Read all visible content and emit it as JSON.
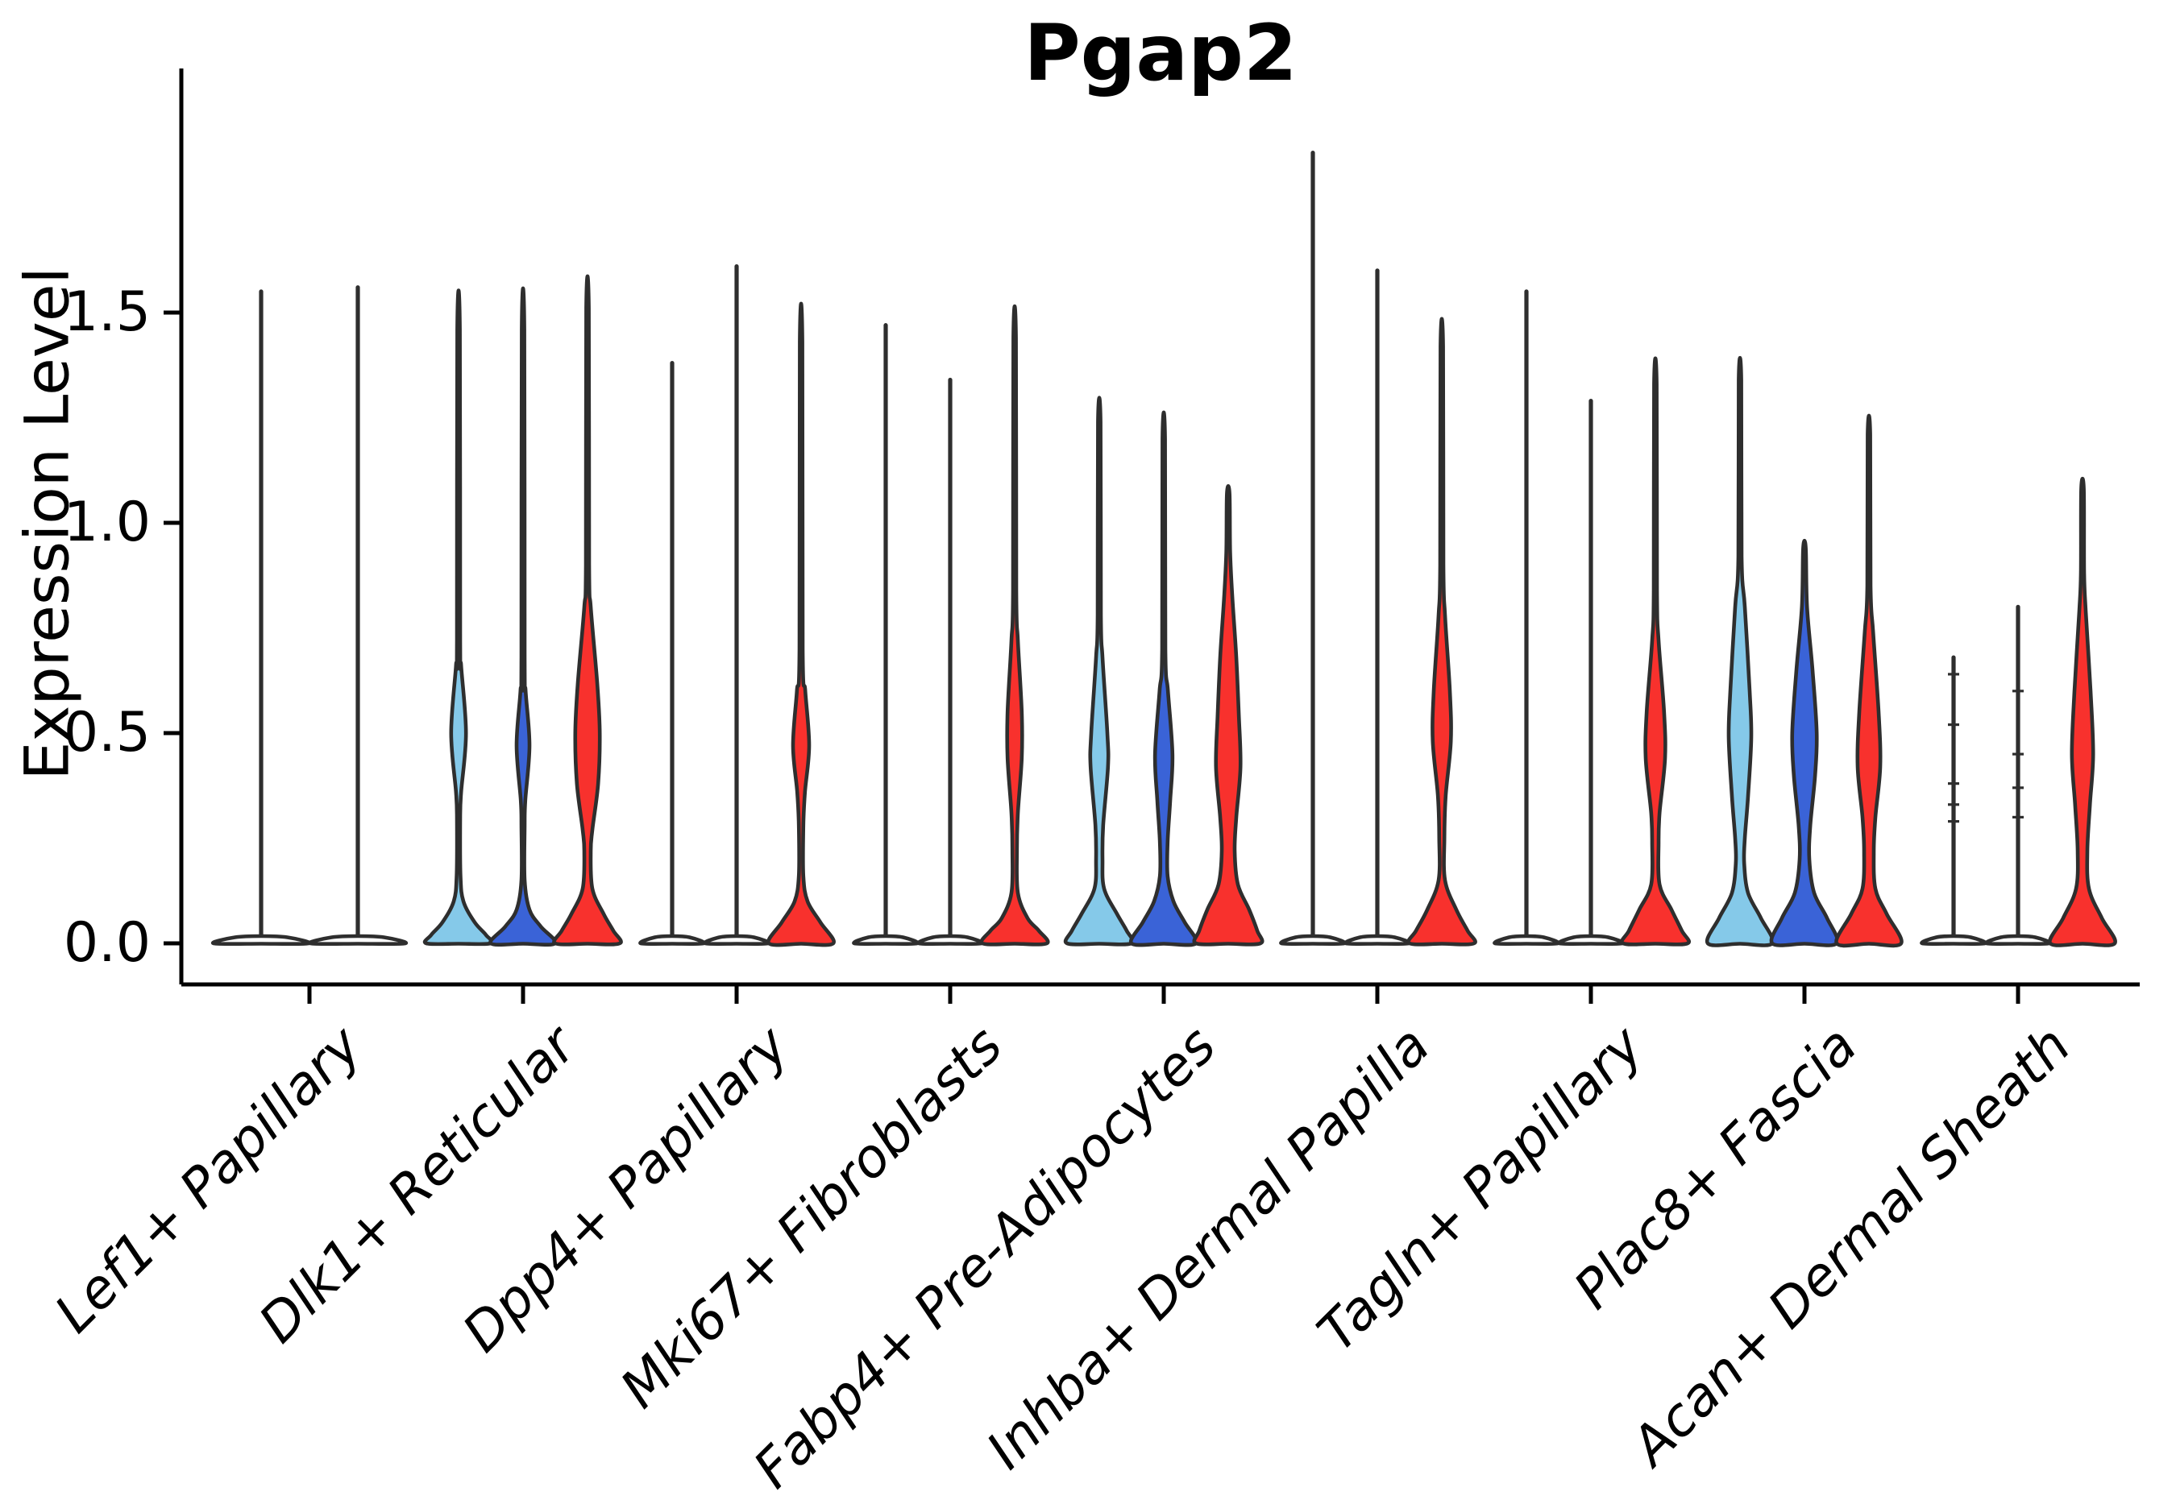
{
  "title": "Pgap2",
  "ylabel": "Expression Level",
  "yticks": [
    "0.0",
    "0.5",
    "1.0",
    "1.5"
  ],
  "ytick_values": [
    0,
    0.5,
    1.0,
    1.5
  ],
  "colors": {
    "light_blue": "#85C9E9",
    "dark_blue": "#3A63D7",
    "red": "#F8312D",
    "outline": "#2E2E2E",
    "axis": "#000000",
    "flat_fill": "#FFFFFF"
  },
  "chart_data": {
    "type": "violin",
    "title": "Pgap2",
    "xlabel": "",
    "ylabel": "Expression Level",
    "ylim": [
      -0.09,
      2.08
    ],
    "grid": false,
    "legend": "none",
    "description": "Split violin plot of Pgap2 expression per fibroblast subtype; up to three split violins per group (light blue, dark blue, red). Flat violins are zero-inflated with a thin max-expression spike.",
    "groups": [
      {
        "label": "Lef1+ Papillary",
        "violins": [
          {
            "color": "flat_fill",
            "shape": "flat",
            "max": 1.55,
            "nubs": []
          },
          {
            "color": "flat_fill",
            "shape": "flat",
            "max": 1.56,
            "nubs": []
          }
        ]
      },
      {
        "label": "Dlk1+ Reticular",
        "violins": [
          {
            "color": "light_blue",
            "shape": "curve",
            "max": 1.46,
            "profile": [
              [
                1.46,
                0.04
              ],
              [
                0.72,
                0.05
              ],
              [
                0.66,
                0.08
              ],
              [
                0.5,
                0.23
              ],
              [
                0.36,
                0.08
              ],
              [
                0.3,
                0.05
              ],
              [
                0.16,
                0.06
              ],
              [
                0.1,
                0.15
              ],
              [
                0.05,
                0.5
              ],
              [
                0.02,
                0.85
              ],
              [
                0,
                1
              ]
            ]
          },
          {
            "color": "dark_blue",
            "shape": "curve",
            "max": 1.46,
            "profile": [
              [
                1.46,
                0.04
              ],
              [
                0.68,
                0.05
              ],
              [
                0.6,
                0.08
              ],
              [
                0.47,
                0.2
              ],
              [
                0.34,
                0.07
              ],
              [
                0.28,
                0.05
              ],
              [
                0.15,
                0.05
              ],
              [
                0.08,
                0.2
              ],
              [
                0.04,
                0.55
              ],
              [
                0,
                1
              ]
            ]
          },
          {
            "color": "red",
            "shape": "curve",
            "max": 1.51,
            "profile": [
              [
                1.51,
                0.04
              ],
              [
                0.9,
                0.05
              ],
              [
                0.8,
                0.1
              ],
              [
                0.62,
                0.3
              ],
              [
                0.5,
                0.38
              ],
              [
                0.38,
                0.33
              ],
              [
                0.27,
                0.15
              ],
              [
                0.22,
                0.1
              ],
              [
                0.13,
                0.15
              ],
              [
                0.07,
                0.5
              ],
              [
                0.03,
                0.8
              ],
              [
                0,
                1
              ]
            ]
          }
        ]
      },
      {
        "label": "Dpp4+ Papillary",
        "violins": [
          {
            "color": "flat_fill",
            "shape": "flat",
            "max": 1.38,
            "nubs": []
          },
          {
            "color": "flat_fill",
            "shape": "flat",
            "max": 1.61,
            "nubs": []
          },
          {
            "color": "red",
            "shape": "curve",
            "max": 1.43,
            "profile": [
              [
                1.43,
                0.04
              ],
              [
                0.7,
                0.05
              ],
              [
                0.6,
                0.13
              ],
              [
                0.47,
                0.25
              ],
              [
                0.36,
                0.12
              ],
              [
                0.28,
                0.07
              ],
              [
                0.16,
                0.07
              ],
              [
                0.1,
                0.2
              ],
              [
                0.05,
                0.6
              ],
              [
                0,
                1
              ]
            ]
          }
        ]
      },
      {
        "label": "Mki67+ Fibroblasts",
        "violins": [
          {
            "color": "flat_fill",
            "shape": "flat",
            "max": 1.47,
            "nubs": []
          },
          {
            "color": "flat_fill",
            "shape": "flat",
            "max": 1.34,
            "nubs": []
          },
          {
            "color": "red",
            "shape": "curve",
            "max": 1.44,
            "profile": [
              [
                1.44,
                0.04
              ],
              [
                0.84,
                0.05
              ],
              [
                0.72,
                0.1
              ],
              [
                0.55,
                0.22
              ],
              [
                0.44,
                0.22
              ],
              [
                0.31,
                0.1
              ],
              [
                0.22,
                0.07
              ],
              [
                0.12,
                0.1
              ],
              [
                0.06,
                0.4
              ],
              [
                0.03,
                0.75
              ],
              [
                0,
                1
              ]
            ]
          }
        ]
      },
      {
        "label": "Fabp4+ Pre-Adipocytes",
        "violins": [
          {
            "color": "light_blue",
            "shape": "curve",
            "max": 1.24,
            "profile": [
              [
                1.24,
                0.04
              ],
              [
                0.78,
                0.05
              ],
              [
                0.68,
                0.1
              ],
              [
                0.5,
                0.25
              ],
              [
                0.42,
                0.27
              ],
              [
                0.28,
                0.12
              ],
              [
                0.2,
                0.1
              ],
              [
                0.13,
                0.15
              ],
              [
                0.07,
                0.55
              ],
              [
                0.03,
                0.85
              ],
              [
                0,
                1
              ]
            ]
          },
          {
            "color": "dark_blue",
            "shape": "curve",
            "max": 1.2,
            "profile": [
              [
                1.2,
                0.04
              ],
              [
                0.7,
                0.05
              ],
              [
                0.6,
                0.13
              ],
              [
                0.45,
                0.27
              ],
              [
                0.34,
                0.2
              ],
              [
                0.24,
                0.12
              ],
              [
                0.16,
                0.12
              ],
              [
                0.1,
                0.3
              ],
              [
                0.05,
                0.65
              ],
              [
                0,
                1
              ]
            ]
          },
          {
            "color": "red",
            "shape": "curve",
            "max": 1.07,
            "profile": [
              [
                1.07,
                0.04
              ],
              [
                0.93,
                0.06
              ],
              [
                0.82,
                0.13
              ],
              [
                0.68,
                0.25
              ],
              [
                0.54,
                0.33
              ],
              [
                0.42,
                0.38
              ],
              [
                0.3,
                0.25
              ],
              [
                0.22,
                0.2
              ],
              [
                0.14,
                0.3
              ],
              [
                0.08,
                0.65
              ],
              [
                0.03,
                0.9
              ],
              [
                0,
                1
              ]
            ]
          }
        ]
      },
      {
        "label": "Inhba+ Dermal Papilla",
        "violins": [
          {
            "color": "flat_fill",
            "shape": "flat",
            "max": 1.88,
            "nubs": []
          },
          {
            "color": "flat_fill",
            "shape": "flat",
            "max": 1.6,
            "nubs": []
          },
          {
            "color": "red",
            "shape": "curve",
            "max": 1.42,
            "profile": [
              [
                1.42,
                0.04
              ],
              [
                0.9,
                0.05
              ],
              [
                0.78,
                0.1
              ],
              [
                0.6,
                0.25
              ],
              [
                0.48,
                0.28
              ],
              [
                0.35,
                0.12
              ],
              [
                0.25,
                0.08
              ],
              [
                0.15,
                0.1
              ],
              [
                0.08,
                0.45
              ],
              [
                0.03,
                0.8
              ],
              [
                0,
                1
              ]
            ]
          }
        ]
      },
      {
        "label": "Tagln+ Papillary",
        "violins": [
          {
            "color": "flat_fill",
            "shape": "flat",
            "max": 1.55,
            "nubs": []
          },
          {
            "color": "flat_fill",
            "shape": "flat",
            "max": 1.29,
            "nubs": []
          },
          {
            "color": "red",
            "shape": "curve",
            "max": 1.33,
            "profile": [
              [
                1.33,
                0.04
              ],
              [
                0.84,
                0.05
              ],
              [
                0.72,
                0.1
              ],
              [
                0.55,
                0.27
              ],
              [
                0.44,
                0.3
              ],
              [
                0.31,
                0.13
              ],
              [
                0.24,
                0.1
              ],
              [
                0.14,
                0.13
              ],
              [
                0.08,
                0.5
              ],
              [
                0.03,
                0.82
              ],
              [
                0,
                1
              ]
            ]
          }
        ]
      },
      {
        "label": "Plac8+ Fascia",
        "violins": [
          {
            "color": "light_blue",
            "shape": "curve",
            "max": 1.34,
            "profile": [
              [
                1.34,
                0.04
              ],
              [
                0.92,
                0.05
              ],
              [
                0.8,
                0.15
              ],
              [
                0.6,
                0.3
              ],
              [
                0.49,
                0.35
              ],
              [
                0.35,
                0.25
              ],
              [
                0.25,
                0.15
              ],
              [
                0.19,
                0.13
              ],
              [
                0.12,
                0.25
              ],
              [
                0.06,
                0.65
              ],
              [
                0,
                1
              ]
            ]
          },
          {
            "color": "dark_blue",
            "shape": "curve",
            "max": 0.94,
            "profile": [
              [
                0.94,
                0.04
              ],
              [
                0.8,
                0.08
              ],
              [
                0.65,
                0.25
              ],
              [
                0.5,
                0.38
              ],
              [
                0.4,
                0.33
              ],
              [
                0.28,
                0.18
              ],
              [
                0.2,
                0.15
              ],
              [
                0.12,
                0.3
              ],
              [
                0.06,
                0.7
              ],
              [
                0,
                1
              ]
            ]
          },
          {
            "color": "red",
            "shape": "curve",
            "max": 1.21,
            "profile": [
              [
                1.21,
                0.04
              ],
              [
                0.85,
                0.05
              ],
              [
                0.74,
                0.13
              ],
              [
                0.55,
                0.3
              ],
              [
                0.42,
                0.35
              ],
              [
                0.3,
                0.2
              ],
              [
                0.22,
                0.15
              ],
              [
                0.13,
                0.2
              ],
              [
                0.07,
                0.55
              ],
              [
                0,
                1
              ]
            ]
          }
        ]
      },
      {
        "label": "Acan+ Dermal Sheath",
        "violins": [
          {
            "color": "flat_fill",
            "shape": "flat",
            "max": 0.68,
            "nubs": [
              0.64,
              0.52,
              0.38,
              0.33,
              0.29
            ]
          },
          {
            "color": "flat_fill",
            "shape": "flat",
            "max": 0.8,
            "nubs": [
              0.6,
              0.45,
              0.37,
              0.3
            ]
          },
          {
            "color": "red",
            "shape": "curve",
            "max": 1.08,
            "profile": [
              [
                1.08,
                0.04
              ],
              [
                0.88,
                0.05
              ],
              [
                0.79,
                0.1
              ],
              [
                0.6,
                0.25
              ],
              [
                0.45,
                0.33
              ],
              [
                0.33,
                0.23
              ],
              [
                0.22,
                0.15
              ],
              [
                0.13,
                0.2
              ],
              [
                0.06,
                0.6
              ],
              [
                0,
                1
              ]
            ]
          }
        ]
      }
    ]
  }
}
